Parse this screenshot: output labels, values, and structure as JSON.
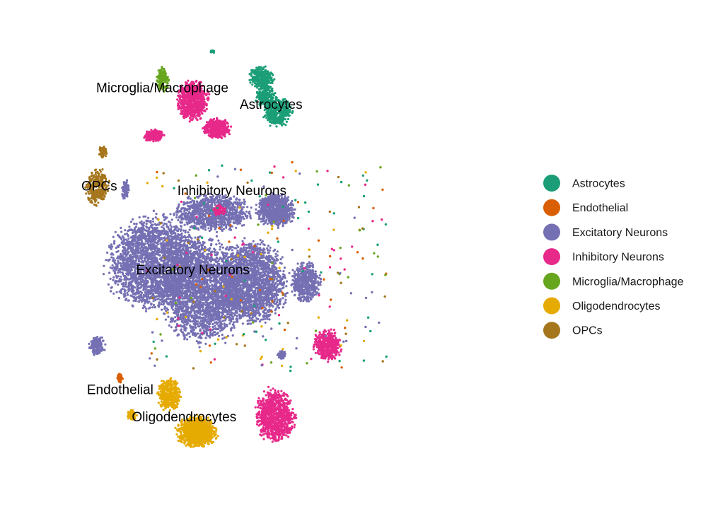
{
  "chart_data": {
    "type": "scatter",
    "title": "",
    "xlabel": "",
    "ylabel": "",
    "axes_visible": false,
    "grid": false,
    "xlim": [
      0,
      100
    ],
    "ylim": [
      0,
      100
    ],
    "legend_position": "right",
    "series": [
      {
        "name": "Astrocytes",
        "color": "#1B9E77",
        "label": "Astrocytes",
        "label_at": [
          48.5,
          82.0
        ],
        "clusters": [
          {
            "cx": 46.2,
            "cy": 88.0,
            "rx": 3.2,
            "ry": 2.6,
            "n": 260
          },
          {
            "cx": 50.0,
            "cy": 80.5,
            "rx": 3.6,
            "ry": 3.4,
            "n": 420
          },
          {
            "cx": 47.2,
            "cy": 84.0,
            "rx": 2.6,
            "ry": 2.4,
            "n": 200
          },
          {
            "cx": 35.0,
            "cy": 93.5,
            "rx": 0.6,
            "ry": 0.4,
            "n": 20
          }
        ]
      },
      {
        "name": "Endothelial",
        "color": "#D95F02",
        "label": "Endothelial",
        "label_at": [
          13.8,
          20.8
        ],
        "clusters": [
          {
            "cx": 13.8,
            "cy": 23.5,
            "rx": 0.7,
            "ry": 1.4,
            "n": 40
          }
        ]
      },
      {
        "name": "Excitatory Neurons",
        "color": "#7570B3",
        "label": "Excitatory Neurons",
        "label_at": [
          30.5,
          46.5
        ],
        "clusters": [
          {
            "cx": 22.0,
            "cy": 48.0,
            "rx": 12.5,
            "ry": 11.0,
            "n": 2600
          },
          {
            "cx": 33.0,
            "cy": 42.0,
            "rx": 11.0,
            "ry": 12.5,
            "n": 2400
          },
          {
            "cx": 44.0,
            "cy": 44.0,
            "rx": 9.0,
            "ry": 10.0,
            "n": 1900
          },
          {
            "cx": 35.0,
            "cy": 59.0,
            "rx": 10.0,
            "ry": 4.5,
            "n": 900
          },
          {
            "cx": 49.5,
            "cy": 59.5,
            "rx": 5.0,
            "ry": 4.0,
            "n": 700
          },
          {
            "cx": 56.5,
            "cy": 44.0,
            "rx": 3.8,
            "ry": 5.0,
            "n": 500
          },
          {
            "cx": 15.0,
            "cy": 64.0,
            "rx": 0.9,
            "ry": 2.5,
            "n": 90
          },
          {
            "cx": 8.5,
            "cy": 30.5,
            "rx": 2.0,
            "ry": 2.4,
            "n": 150
          },
          {
            "cx": 51.0,
            "cy": 28.5,
            "rx": 1.2,
            "ry": 1.0,
            "n": 50
          }
        ]
      },
      {
        "name": "Inhibitory Neurons",
        "color": "#E7298A",
        "label": "Inhibitory Neurons",
        "label_at": [
          39.5,
          63.5
        ],
        "clusters": [
          {
            "cx": 30.5,
            "cy": 83.0,
            "rx": 4.0,
            "ry": 5.0,
            "n": 700
          },
          {
            "cx": 36.0,
            "cy": 77.0,
            "rx": 3.5,
            "ry": 2.4,
            "n": 420
          },
          {
            "cx": 21.5,
            "cy": 75.5,
            "rx": 2.7,
            "ry": 1.4,
            "n": 180
          },
          {
            "cx": 36.5,
            "cy": 59.5,
            "rx": 1.6,
            "ry": 1.2,
            "n": 90
          },
          {
            "cx": 49.5,
            "cy": 15.5,
            "rx": 5.0,
            "ry": 6.5,
            "n": 850
          },
          {
            "cx": 61.5,
            "cy": 30.5,
            "rx": 3.5,
            "ry": 3.8,
            "n": 420
          }
        ]
      },
      {
        "name": "Microglia/Macrophage",
        "color": "#66A61E",
        "label": "Microglia/Macrophage",
        "label_at": [
          23.5,
          85.5
        ],
        "clusters": [
          {
            "cx": 23.5,
            "cy": 87.5,
            "rx": 1.6,
            "ry": 2.8,
            "n": 150
          }
        ]
      },
      {
        "name": "Oligodendrocytes",
        "color": "#E6AB02",
        "label": "Oligodendrocytes",
        "label_at": [
          28.5,
          15.0
        ],
        "clusters": [
          {
            "cx": 31.5,
            "cy": 12.0,
            "rx": 5.2,
            "ry": 3.8,
            "n": 900
          },
          {
            "cx": 25.0,
            "cy": 20.0,
            "rx": 3.0,
            "ry": 3.8,
            "n": 420
          },
          {
            "cx": 16.5,
            "cy": 15.5,
            "rx": 1.2,
            "ry": 1.2,
            "n": 60
          }
        ]
      },
      {
        "name": "OPCs",
        "color": "#A6761D",
        "label": "OPCs",
        "label_at": [
          9.0,
          64.5
        ],
        "clusters": [
          {
            "cx": 8.5,
            "cy": 64.5,
            "rx": 3.0,
            "ry": 4.5,
            "n": 260
          },
          {
            "cx": 9.8,
            "cy": 72.0,
            "rx": 1.2,
            "ry": 1.4,
            "n": 60
          }
        ]
      }
    ]
  }
}
